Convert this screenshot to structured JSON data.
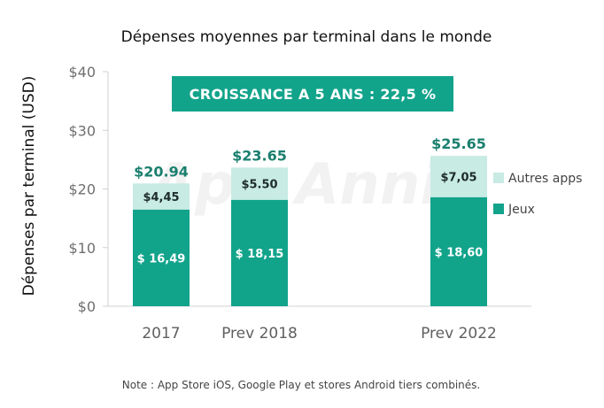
{
  "chart_data": {
    "type": "bar",
    "stacked": true,
    "title": "Dépenses moyennes par terminal dans le monde",
    "ylabel": "Dépenses par terminal (USD)",
    "xlabel": "",
    "ylim": [
      0,
      40
    ],
    "yticks": [
      0,
      10,
      20,
      30,
      40
    ],
    "ytick_labels": [
      "$0",
      "$10",
      "$20",
      "$30",
      "$40"
    ],
    "categories": [
      "2017",
      "Prev 2018",
      "Prev 2022"
    ],
    "series": [
      {
        "name": "Jeux",
        "values": [
          16.49,
          18.15,
          18.6
        ],
        "labels": [
          "$ 16,49",
          "$ 18,15",
          "$ 18,60"
        ],
        "color": "#12a38b"
      },
      {
        "name": "Autres apps",
        "values": [
          4.45,
          5.5,
          7.05
        ],
        "labels": [
          "$4,45",
          "$5.50",
          "$7,05"
        ],
        "color": "#c8ebe4"
      }
    ],
    "totals": [
      "$20.94",
      "$23.65",
      "$25.65"
    ],
    "legend_position": "right",
    "grid": false,
    "annotation": "CROISSANCE A 5 ANS : 22,5 %",
    "note": "Note : App Store iOS, Google Play et stores Android tiers combinés.",
    "watermark": "App Annie",
    "colors": {
      "accent": "#12a38b",
      "light": "#c8ebe4",
      "total_text": "#1a7f6e",
      "banner": "#12a38b"
    }
  }
}
